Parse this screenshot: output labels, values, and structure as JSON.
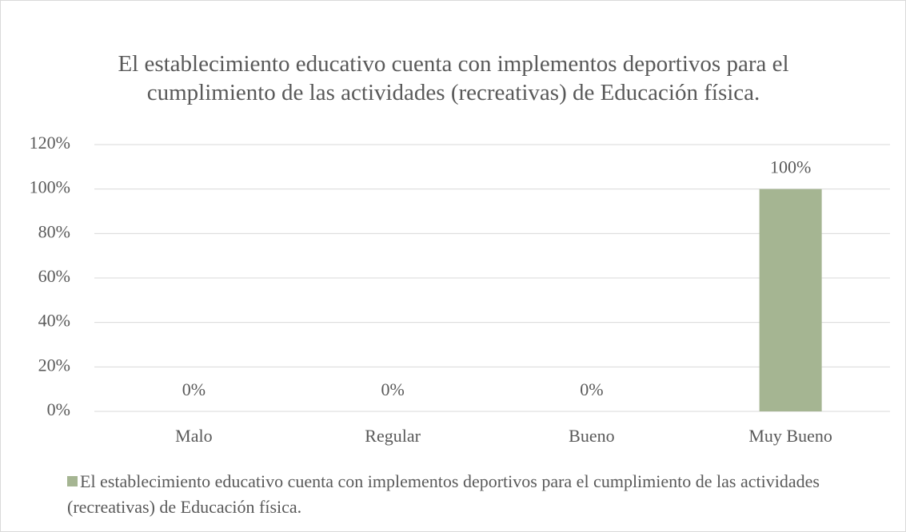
{
  "chart_data": {
    "type": "bar",
    "title": "El establecimiento educativo cuenta con implementos deportivos para el cumplimiento de las actividades (recreativas) de Educación física.",
    "categories": [
      "Malo",
      "Regular",
      "Bueno",
      "Muy Bueno"
    ],
    "series": [
      {
        "name": "El establecimiento educativo cuenta con implementos deportivos para el cumplimiento de las actividades (recreativas) de Educación física.",
        "color": "#a5b592",
        "values": [
          0,
          0,
          0,
          100
        ],
        "value_labels": [
          "0%",
          "0%",
          "0%",
          "100%"
        ]
      }
    ],
    "ylim": [
      0,
      120
    ],
    "yticks": [
      {
        "value": 0,
        "label": "0%"
      },
      {
        "value": 20,
        "label": "20%"
      },
      {
        "value": 40,
        "label": "40%"
      },
      {
        "value": 60,
        "label": "60%"
      },
      {
        "value": 80,
        "label": "80%"
      },
      {
        "value": 100,
        "label": "100%"
      },
      {
        "value": 120,
        "label": "120%"
      }
    ],
    "grid": true,
    "legend": "bottom"
  }
}
